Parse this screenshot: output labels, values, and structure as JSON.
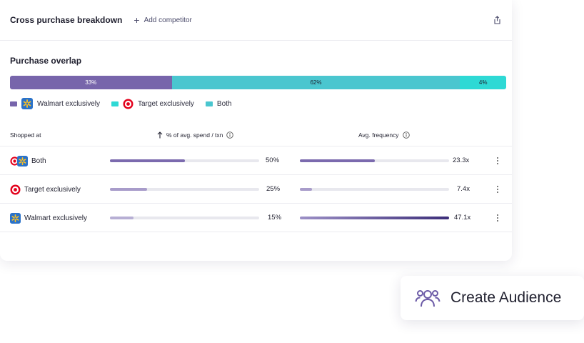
{
  "header": {
    "title": "Cross purchase breakdown",
    "add_competitor": "Add competitor"
  },
  "overlap": {
    "title": "Purchase overlap",
    "segments": [
      {
        "key": "walmart",
        "label": "33%",
        "value": 33
      },
      {
        "key": "target",
        "label": "62%",
        "value": 62
      },
      {
        "key": "both",
        "label": "4%",
        "value": 4
      }
    ],
    "legend": {
      "walmart": "Walmart exclusively",
      "target": "Target exclusively",
      "both": "Both"
    },
    "colors": {
      "walmart": "#7765ab",
      "target": "#4ac6cf",
      "both": "#2ed9d5"
    }
  },
  "table": {
    "columns": {
      "shopped_at": "Shopped at",
      "spend": "% of avg. spend / txn",
      "frequency": "Avg. frequency"
    },
    "rows": [
      {
        "label": "Both",
        "spend": "50%",
        "spend_fraction": 0.5,
        "frequency": "23.3x",
        "frequency_fraction": 0.5
      },
      {
        "label": "Target exclusively",
        "spend": "25%",
        "spend_fraction": 0.25,
        "frequency": "7.4x",
        "frequency_fraction": 0.08
      },
      {
        "label": "Walmart exclusively",
        "spend": "15%",
        "spend_fraction": 0.16,
        "frequency": "47.1x",
        "frequency_fraction": 1.0
      }
    ]
  },
  "create_audience": {
    "label": "Create Audience"
  }
}
